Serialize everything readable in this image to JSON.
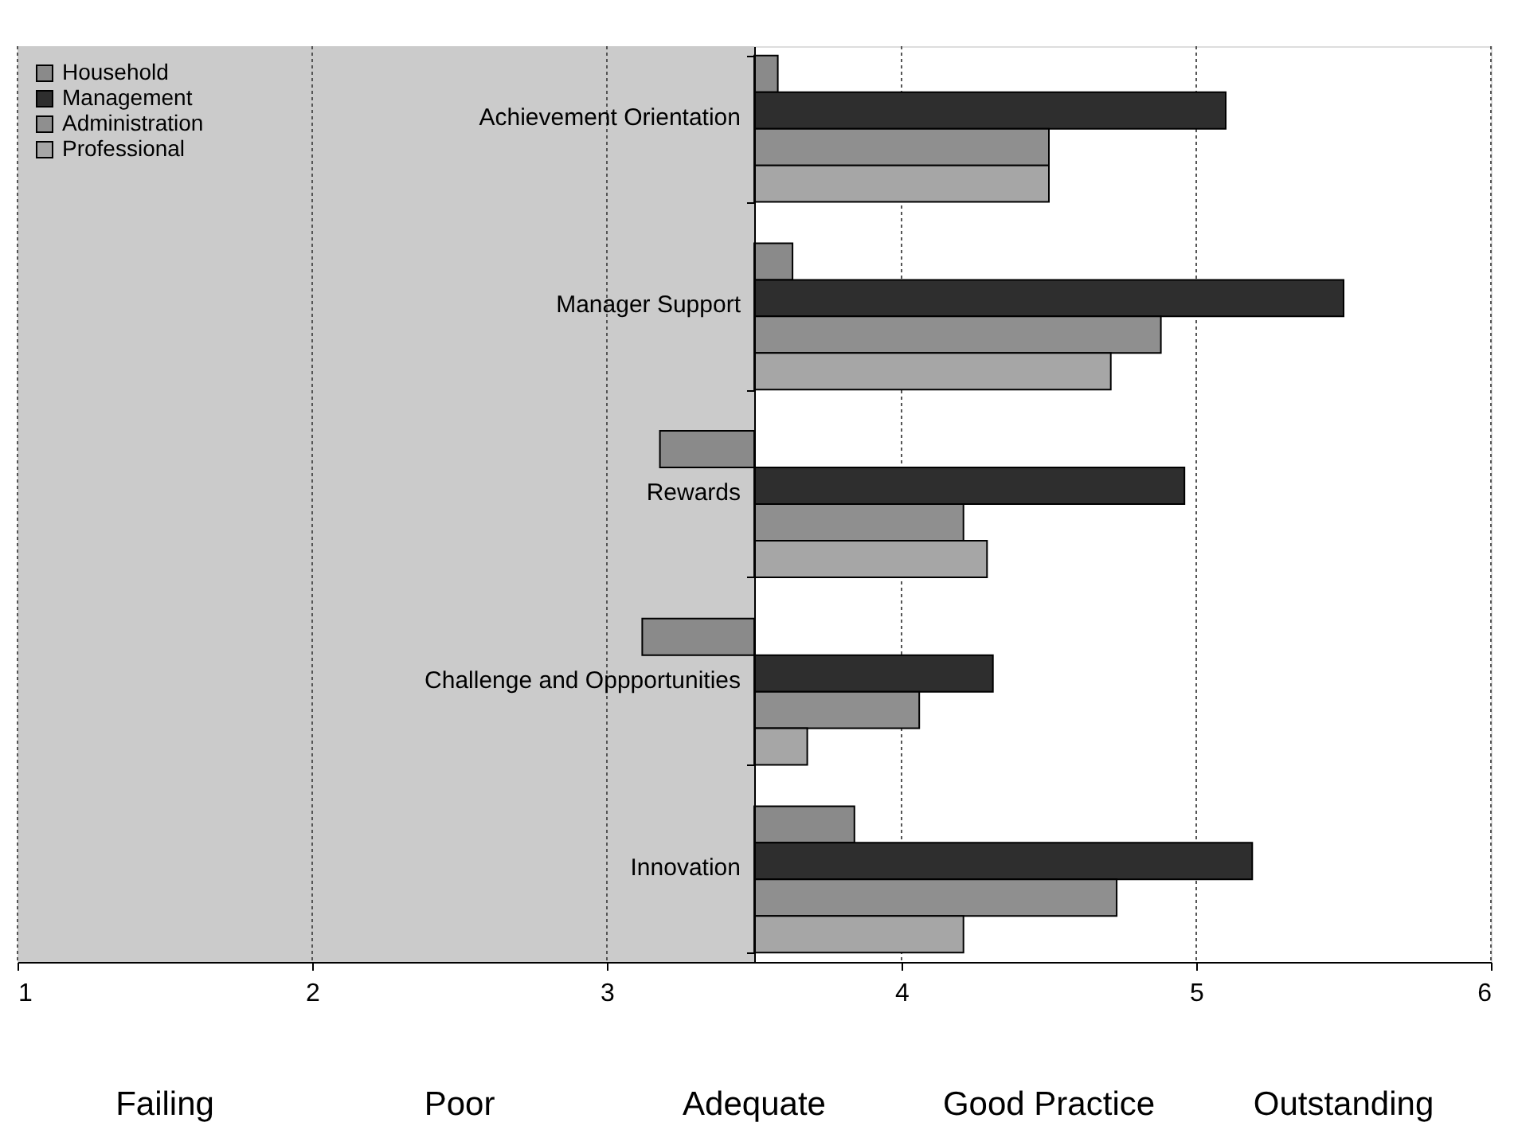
{
  "chart_data": {
    "type": "bar",
    "orientation": "horizontal",
    "categories": [
      "Achievement Orientation",
      "Manager Support",
      "Rewards",
      "Challenge and Oppportunities",
      "Innovation"
    ],
    "series": [
      {
        "name": "Household",
        "color": "#8a8a8a",
        "base": [
          3.5,
          3.5,
          3.5,
          3.5,
          3.5
        ],
        "values": [
          0.08,
          0.13,
          -0.32,
          -0.38,
          0.34
        ]
      },
      {
        "name": "Management",
        "color": "#2e2e2e",
        "base": [
          3.5,
          3.5,
          3.5,
          3.5,
          3.5
        ],
        "values": [
          1.6,
          2.0,
          1.46,
          0.81,
          1.69
        ]
      },
      {
        "name": "Administration",
        "color": "#8f8f8f",
        "base": [
          3.5,
          3.5,
          3.5,
          3.5,
          3.5
        ],
        "values": [
          1.0,
          1.38,
          0.71,
          0.56,
          1.23
        ]
      },
      {
        "name": "Professional",
        "color": "#a6a6a6",
        "base": [
          3.5,
          3.5,
          3.5,
          3.5,
          3.5
        ],
        "values": [
          1.0,
          1.21,
          0.79,
          0.18,
          0.71
        ]
      }
    ],
    "xlim": [
      1,
      6
    ],
    "xticks": [
      1,
      2,
      3,
      4,
      5,
      6
    ],
    "bands": [
      {
        "axis": "x",
        "from": 1,
        "to": 3.5,
        "color": "#cbcbcb"
      }
    ],
    "annotations": [
      "Failing",
      "Poor",
      "Adequate",
      "Good Practice",
      "Outstanding"
    ],
    "grid": "x",
    "legend": "top left"
  }
}
